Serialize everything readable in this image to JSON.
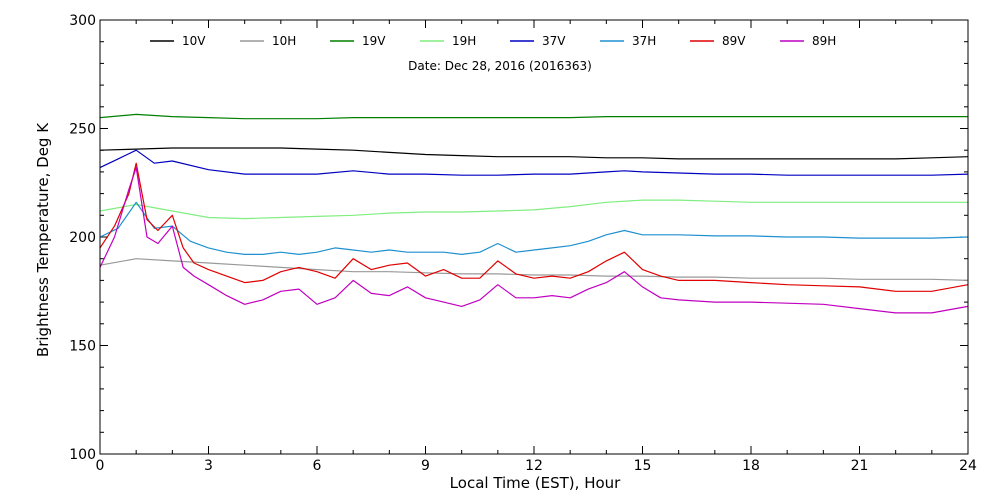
{
  "chart_data": {
    "type": "line",
    "title": "",
    "annotation": "Date: Dec 28, 2016 (2016363)",
    "xlabel": "Local Time (EST), Hour",
    "ylabel": "Brightness Temperature, Deg K",
    "xlim": [
      0,
      24
    ],
    "ylim": [
      100,
      300
    ],
    "xticks": [
      0,
      3,
      6,
      9,
      12,
      15,
      18,
      21,
      24
    ],
    "xtick_labels": [
      "0",
      "3",
      "6",
      "9",
      "12",
      "15",
      "18",
      "21",
      "24"
    ],
    "yticks": [
      100,
      150,
      200,
      250,
      300
    ],
    "ytick_labels": [
      "100",
      "150",
      "200",
      "250",
      "300"
    ],
    "grid": false,
    "legend_position": "top",
    "series": [
      {
        "name": "10V",
        "color": "#000000",
        "x": [
          0,
          1,
          2,
          3,
          4,
          5,
          6,
          7,
          8,
          9,
          10,
          11,
          12,
          13,
          14,
          15,
          16,
          17,
          18,
          19,
          20,
          21,
          22,
          23,
          24
        ],
        "y": [
          240,
          240.5,
          241,
          241,
          241,
          241,
          240.5,
          240,
          239,
          238,
          237.5,
          237,
          237,
          237,
          236.5,
          236.5,
          236,
          236,
          236,
          236,
          236,
          236,
          236,
          236.5,
          237
        ]
      },
      {
        "name": "10H",
        "color": "#999999",
        "x": [
          0,
          1,
          2,
          3,
          4,
          5,
          6,
          7,
          8,
          9,
          10,
          11,
          12,
          13,
          14,
          15,
          16,
          17,
          18,
          19,
          20,
          21,
          22,
          23,
          24
        ],
        "y": [
          187,
          190,
          189,
          188,
          187,
          186,
          185,
          184,
          184,
          183.5,
          183,
          183,
          182.5,
          182.5,
          182,
          182,
          181.5,
          181.5,
          181,
          181,
          181,
          180.5,
          180.5,
          180.5,
          180
        ]
      },
      {
        "name": "19V",
        "color": "#008000",
        "x": [
          0,
          1,
          2,
          3,
          4,
          5,
          6,
          7,
          8,
          9,
          10,
          11,
          12,
          13,
          14,
          15,
          16,
          17,
          18,
          19,
          20,
          21,
          22,
          23,
          24
        ],
        "y": [
          255,
          256.5,
          255.5,
          255,
          254.5,
          254.5,
          254.5,
          255,
          255,
          255,
          255,
          255,
          255,
          255,
          255.5,
          255.5,
          255.5,
          255.5,
          255.5,
          255.5,
          255.5,
          255.5,
          255.5,
          255.5,
          255.5
        ]
      },
      {
        "name": "19H",
        "color": "#80ee80",
        "x": [
          0,
          1,
          2,
          3,
          4,
          5,
          6,
          7,
          8,
          9,
          10,
          11,
          12,
          13,
          14,
          15,
          16,
          17,
          18,
          19,
          20,
          21,
          22,
          23,
          24
        ],
        "y": [
          212,
          215,
          212,
          209,
          208.5,
          209,
          209.5,
          210,
          211,
          211.5,
          211.5,
          212,
          212.5,
          214,
          216,
          217,
          217,
          216.5,
          216,
          216,
          216,
          216,
          216,
          216,
          216
        ]
      },
      {
        "name": "37V",
        "color": "#0000c0",
        "x": [
          0,
          0.5,
          1,
          1.5,
          2,
          3,
          4,
          5,
          6,
          7,
          8,
          9,
          10,
          11,
          12,
          13,
          14,
          14.5,
          15,
          16,
          17,
          18,
          19,
          20,
          21,
          22,
          23,
          24
        ],
        "y": [
          232,
          236,
          240,
          234,
          235,
          231,
          229,
          229,
          229,
          230.5,
          229,
          229,
          228.5,
          228.5,
          229,
          229,
          230,
          230.5,
          230,
          229.5,
          229,
          229,
          228.5,
          228.5,
          228.5,
          228.5,
          228.5,
          229
        ]
      },
      {
        "name": "37H",
        "color": "#1e90d0",
        "x": [
          0,
          0.5,
          1,
          1.5,
          2,
          2.5,
          3,
          3.5,
          4,
          4.5,
          5,
          5.5,
          6,
          6.5,
          7,
          7.5,
          8,
          8.5,
          9,
          9.5,
          10,
          10.5,
          11,
          11.5,
          12,
          12.5,
          13,
          13.5,
          14,
          14.5,
          15,
          15.5,
          16,
          17,
          18,
          19,
          20,
          21,
          22,
          23,
          24
        ],
        "y": [
          200,
          204,
          216,
          204,
          205,
          198,
          195,
          193,
          192,
          192,
          193,
          192,
          193,
          195,
          194,
          193,
          194,
          193,
          193,
          193,
          192,
          193,
          197,
          193,
          194,
          195,
          196,
          198,
          201,
          203,
          201,
          201,
          201,
          200.5,
          200.5,
          200,
          200,
          199.5,
          199.5,
          199.5,
          200
        ]
      },
      {
        "name": "89V",
        "color": "#e00000",
        "x": [
          0,
          0.4,
          0.8,
          1,
          1.3,
          1.6,
          2,
          2.3,
          2.6,
          3,
          3.5,
          4,
          4.5,
          5,
          5.5,
          6,
          6.5,
          7,
          7.5,
          8,
          8.5,
          9,
          9.5,
          10,
          10.5,
          11,
          11.5,
          12,
          12.5,
          13,
          13.5,
          14,
          14.5,
          15,
          15.5,
          16,
          17,
          18,
          19,
          20,
          21,
          22,
          23,
          24
        ],
        "y": [
          195,
          205,
          220,
          234,
          208,
          203,
          210,
          195,
          188,
          185,
          182,
          179,
          180,
          184,
          186,
          184,
          181,
          190,
          185,
          187,
          188,
          182,
          185,
          181,
          181,
          189,
          183,
          181,
          182,
          181,
          184,
          189,
          193,
          185,
          182,
          180,
          180,
          179,
          178,
          177.5,
          177,
          175,
          175,
          178
        ]
      },
      {
        "name": "89H",
        "color": "#c000c0",
        "x": [
          0,
          0.4,
          0.8,
          1,
          1.3,
          1.6,
          2,
          2.3,
          2.6,
          3,
          3.5,
          4,
          4.5,
          5,
          5.5,
          6,
          6.5,
          7,
          7.5,
          8,
          8.5,
          9,
          9.5,
          10,
          10.5,
          11,
          11.5,
          12,
          12.5,
          13,
          13.5,
          14,
          14.5,
          15,
          15.5,
          16,
          17,
          18,
          19,
          20,
          21,
          22,
          23,
          24
        ],
        "y": [
          186,
          200,
          222,
          232,
          200,
          197,
          205,
          186,
          182,
          178,
          173,
          169,
          171,
          175,
          176,
          169,
          172,
          180,
          174,
          173,
          177,
          172,
          170,
          168,
          171,
          178,
          172,
          172,
          173,
          172,
          176,
          179,
          184,
          177,
          172,
          171,
          170,
          170,
          169.5,
          169,
          167,
          165,
          165,
          168
        ]
      }
    ]
  }
}
